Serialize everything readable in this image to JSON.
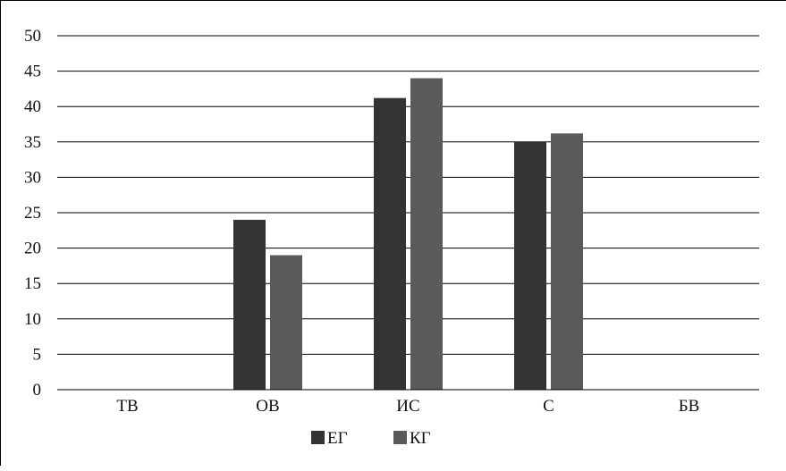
{
  "chart_data": {
    "type": "bar",
    "categories": [
      "ТВ",
      "ОВ",
      "ИС",
      "С",
      "БВ"
    ],
    "series": [
      {
        "name": "ЕГ",
        "values": [
          0,
          24,
          41.2,
          35,
          0
        ],
        "color": "#333333"
      },
      {
        "name": "КГ",
        "values": [
          0,
          19,
          44,
          36.2,
          0
        ],
        "color": "#5a5a5a"
      }
    ],
    "ylim": [
      0,
      50
    ],
    "yticks": [
      0,
      5,
      10,
      15,
      20,
      25,
      30,
      35,
      40,
      45,
      50
    ],
    "grid": true,
    "legend_position": "bottom-center",
    "title": "",
    "xlabel": "",
    "ylabel": ""
  }
}
